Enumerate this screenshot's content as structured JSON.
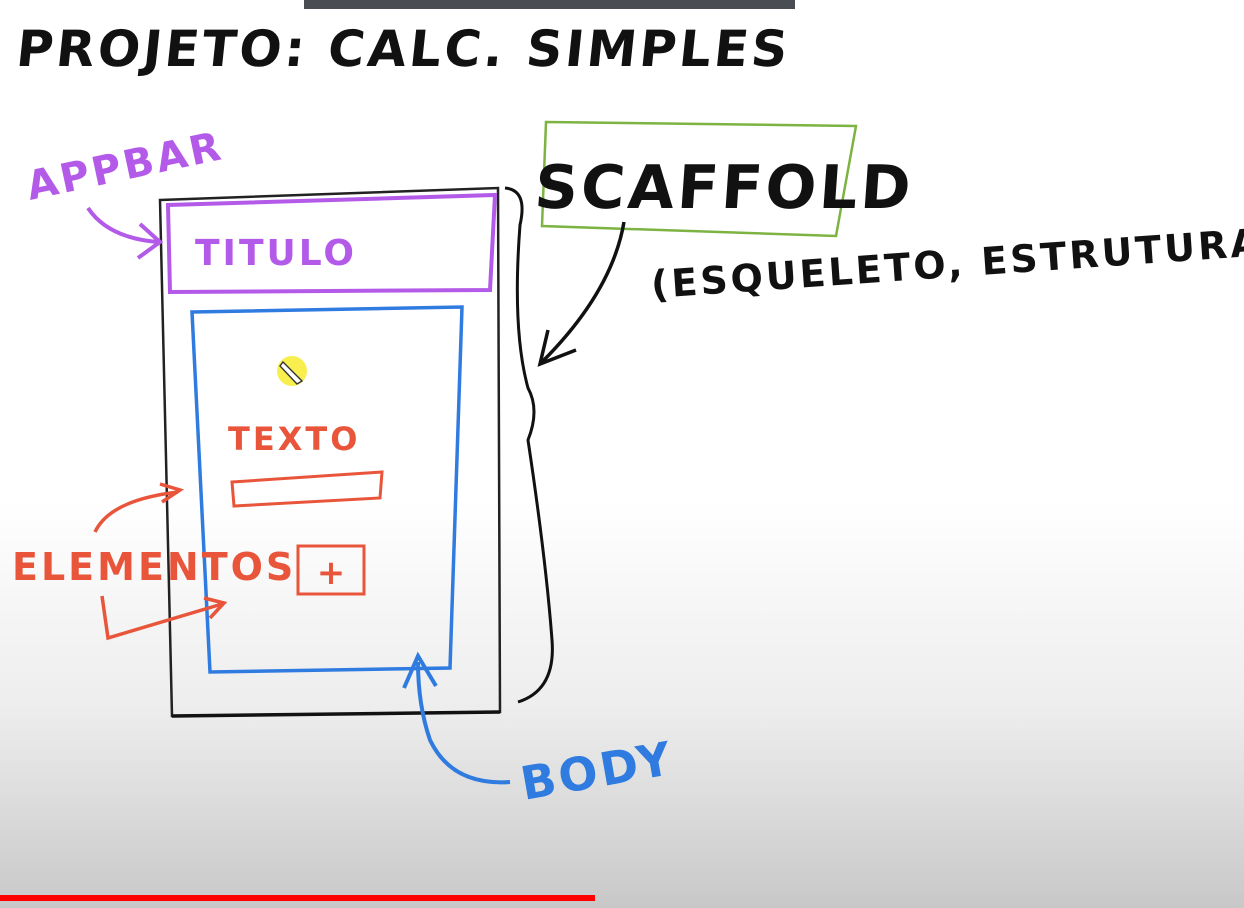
{
  "title": "PROJETO: CALC. SIMPLES",
  "labels": {
    "appbar": "APPBAR",
    "titulo": "TITULO",
    "scaffold": "SCAFFOLD",
    "scaffold_note": "(ESQUELETO, ESTRUTURA)",
    "texto": "TEXTO",
    "plus": "+",
    "elementos": "ELEMENTOS",
    "body": "BODY"
  },
  "colors": {
    "ink": "#111111",
    "appbar": "#b35ae8",
    "body": "#2f7be0",
    "elements": "#e8553a",
    "scaffold_box": "#7cb342",
    "pointer": "#f7ec3a",
    "progress": "#ff0000"
  },
  "player": {
    "progress_fraction": 0.478
  }
}
